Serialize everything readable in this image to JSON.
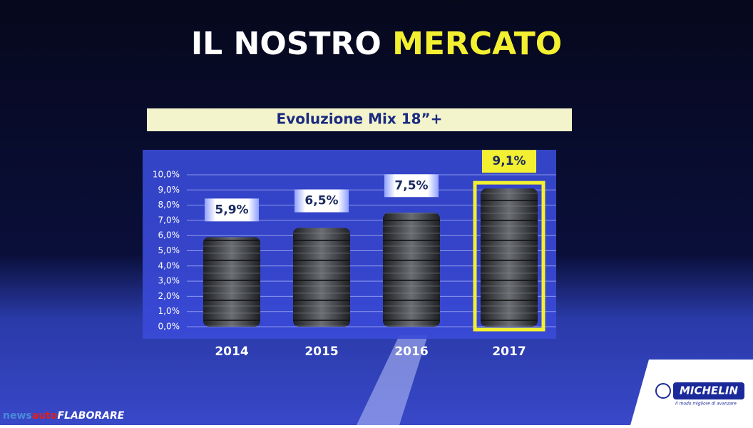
{
  "slide_title": [
    "IL NOSTRO",
    "MERCATO"
  ],
  "chart_data": {
    "type": "bar",
    "title": "Evoluzione Mix 18”+",
    "categories": [
      "2014",
      "2015",
      "2016",
      "2017"
    ],
    "values": [
      5.9,
      6.5,
      7.5,
      9.1
    ],
    "value_labels": [
      "5,9%",
      "6,5%",
      "7,5%",
      "9,1%"
    ],
    "color": "#3a3d42",
    "label_colors": [
      "#ffffff",
      "#ffffff",
      "#ffffff",
      "#f2f030"
    ],
    "ylim": [
      0,
      10
    ],
    "yticks": [
      {
        "value": 0,
        "label": "0,0%"
      },
      {
        "value": 1,
        "label": "1,0%"
      },
      {
        "value": 2,
        "label": "2,0%"
      },
      {
        "value": 3,
        "label": "3,0%"
      },
      {
        "value": 4,
        "label": "4,0%"
      },
      {
        "value": 5,
        "label": "5,0%"
      },
      {
        "value": 6,
        "label": "6,0%"
      },
      {
        "value": 7,
        "label": "7,0%"
      },
      {
        "value": 8,
        "label": "8,0%"
      },
      {
        "value": 9,
        "label": "9,0%"
      },
      {
        "value": 10,
        "label": "10,0%"
      }
    ],
    "grid": true
  },
  "logo": {
    "brand": "MICHELIN",
    "tagline": "Il modo migliore di avanzare"
  },
  "watermark": [
    "news",
    "auto",
    "FLABORARE"
  ]
}
